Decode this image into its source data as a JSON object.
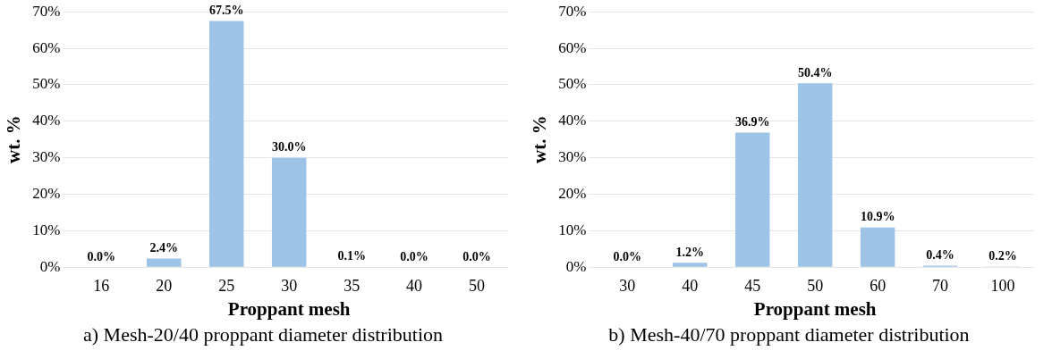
{
  "chart_data": [
    {
      "type": "bar",
      "xlabel": "Proppant mesh",
      "ylabel": "wt. %",
      "annotations": [
        "a)    Mesh-20/40 proppant diameter distribution"
      ],
      "categories": [
        "16",
        "20",
        "25",
        "30",
        "35",
        "40",
        "50"
      ],
      "values": [
        0.0,
        2.4,
        67.5,
        30.0,
        0.1,
        0.0,
        0.0
      ],
      "value_labels": [
        "0.0%",
        "2.4%",
        "67.5%",
        "30.0%",
        "0.1%",
        "0.0%",
        "0.0%"
      ],
      "color": "#9dc3e6",
      "ylim": [
        0,
        70
      ],
      "yticks": [
        {
          "value": 0,
          "label": "0%"
        },
        {
          "value": 10,
          "label": "10%"
        },
        {
          "value": 20,
          "label": "20%"
        },
        {
          "value": 30,
          "label": "30%"
        },
        {
          "value": 40,
          "label": "40%"
        },
        {
          "value": 50,
          "label": "50%"
        },
        {
          "value": 60,
          "label": "60%"
        },
        {
          "value": 70,
          "label": "70%"
        }
      ],
      "grid": "y",
      "legend": false
    },
    {
      "type": "bar",
      "xlabel": "Proppant mesh",
      "ylabel": "wt. %",
      "annotations": [
        "b)    Mesh-40/70 proppant diameter distribution"
      ],
      "categories": [
        "30",
        "40",
        "45",
        "50",
        "60",
        "70",
        "100"
      ],
      "values": [
        0.0,
        1.2,
        36.9,
        50.4,
        10.9,
        0.4,
        0.2
      ],
      "value_labels": [
        "0.0%",
        "1.2%",
        "36.9%",
        "50.4%",
        "10.9%",
        "0.4%",
        "0.2%"
      ],
      "color": "#9dc3e6",
      "ylim": [
        0,
        70
      ],
      "yticks": [
        {
          "value": 0,
          "label": "0%"
        },
        {
          "value": 10,
          "label": "10%"
        },
        {
          "value": 20,
          "label": "20%"
        },
        {
          "value": 30,
          "label": "30%"
        },
        {
          "value": 40,
          "label": "40%"
        },
        {
          "value": 50,
          "label": "50%"
        },
        {
          "value": 60,
          "label": "60%"
        },
        {
          "value": 70,
          "label": "70%"
        }
      ],
      "grid": "y",
      "legend": false
    }
  ]
}
